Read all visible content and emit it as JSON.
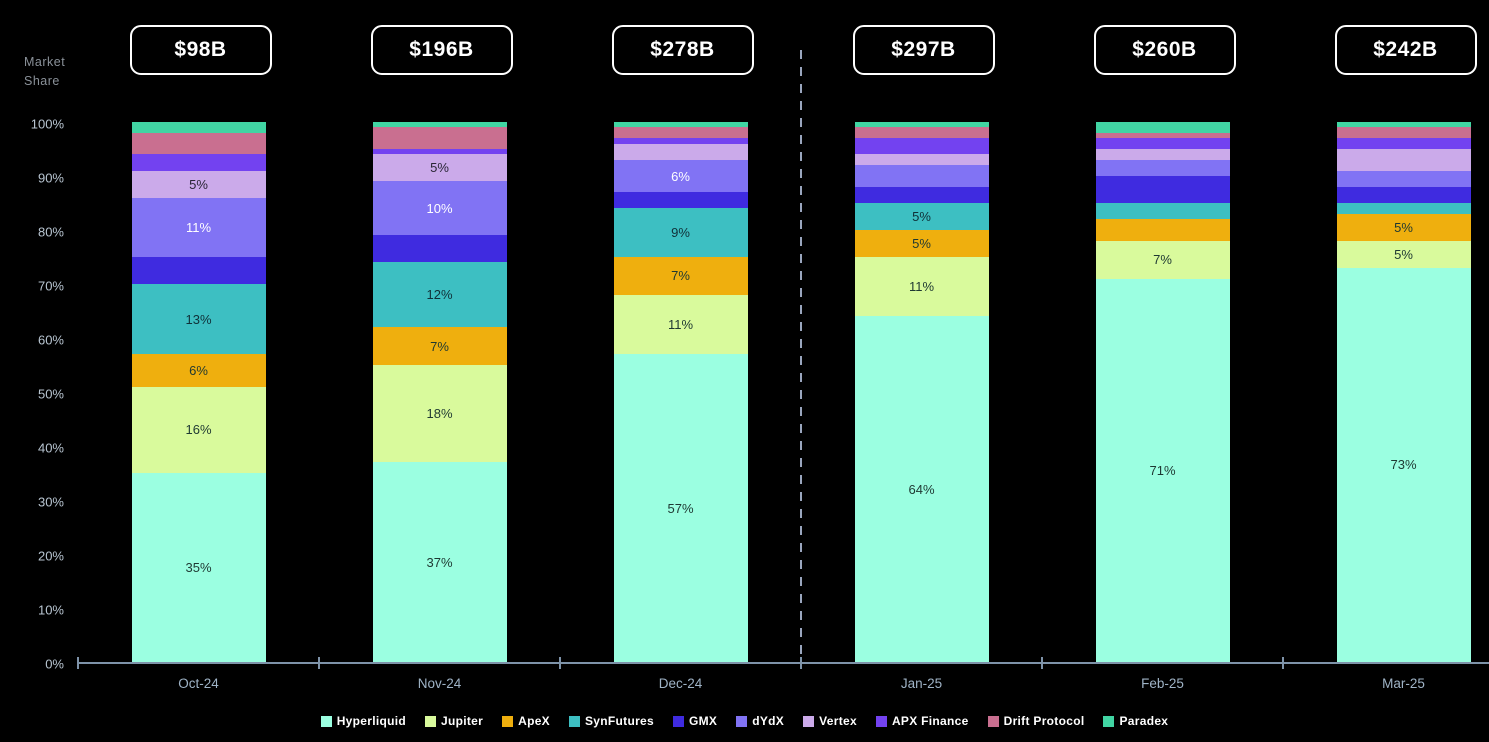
{
  "y_axis_title": {
    "line1": "Market",
    "line2": "Share"
  },
  "chart_data": {
    "type": "bar",
    "variant": "100-percent-stacked-column",
    "title": "",
    "ylabel": "Market Share",
    "categories": [
      "Oct-24",
      "Nov-24",
      "Dec-24",
      "Jan-25",
      "Feb-25",
      "Mar-25"
    ],
    "totals": [
      "$98B",
      "$196B",
      "$278B",
      "$297B",
      "$260B",
      "$242B"
    ],
    "y_ticks": [
      "0%",
      "10%",
      "20%",
      "30%",
      "40%",
      "50%",
      "60%",
      "70%",
      "80%",
      "90%",
      "100%"
    ],
    "ylim": [
      0,
      100
    ],
    "grid": false,
    "legend_position": "bottom",
    "divider_between": [
      "Dec-24",
      "Jan-25"
    ],
    "series": [
      {
        "name": "Hyperliquid",
        "color": "#9BFFE1",
        "label_color": "#1E3832",
        "values": [
          35,
          37,
          57,
          64,
          71,
          73
        ],
        "labels": [
          "35%",
          "37%",
          "57%",
          "64%",
          "71%",
          "73%"
        ]
      },
      {
        "name": "Jupiter",
        "color": "#D9FA9C",
        "label_color": "#1E3832",
        "values": [
          16,
          18,
          11,
          11,
          7,
          5
        ],
        "labels": [
          "16%",
          "18%",
          "11%",
          "11%",
          "7%",
          "5%"
        ]
      },
      {
        "name": "ApeX",
        "color": "#EFAF0E",
        "label_color": "#1E3832",
        "values": [
          6,
          7,
          7,
          5,
          4,
          5
        ],
        "labels": [
          "6%",
          "7%",
          "7%",
          "5%",
          "",
          "5%"
        ]
      },
      {
        "name": "SynFutures",
        "color": "#3DBFC2",
        "label_color": "#103038",
        "values": [
          13,
          12,
          9,
          5,
          3,
          2
        ],
        "labels": [
          "13%",
          "12%",
          "9%",
          "5%",
          "",
          ""
        ]
      },
      {
        "name": "GMX",
        "color": "#3F2BE0",
        "label_color": "#FFFFFF",
        "values": [
          5,
          5,
          3,
          3,
          5,
          3
        ],
        "labels": [
          "",
          "",
          "",
          "",
          "",
          ""
        ]
      },
      {
        "name": "dYdX",
        "color": "#8173F4",
        "label_color": "#FFFFFF",
        "values": [
          11,
          10,
          6,
          4,
          3,
          3
        ],
        "labels": [
          "11%",
          "10%",
          "6%",
          "",
          "",
          ""
        ]
      },
      {
        "name": "Vertex",
        "color": "#CBAAEA",
        "label_color": "#2A2636",
        "values": [
          5,
          5,
          3,
          2,
          2,
          4
        ],
        "labels": [
          "5%",
          "5%",
          "",
          "",
          "",
          ""
        ]
      },
      {
        "name": "APX Finance",
        "color": "#7342F0",
        "label_color": "#FFFFFF",
        "values": [
          3,
          1,
          1,
          3,
          2,
          2
        ],
        "labels": [
          "",
          "",
          "",
          "",
          "",
          ""
        ]
      },
      {
        "name": "Drift Protocol",
        "color": "#C96F90",
        "label_color": "#FFFFFF",
        "values": [
          4,
          4,
          2,
          2,
          1,
          2
        ],
        "labels": [
          "",
          "",
          "",
          "",
          "",
          ""
        ]
      },
      {
        "name": "Paradex",
        "color": "#41D5A3",
        "label_color": "#FFFFFF",
        "values": [
          2,
          1,
          1,
          1,
          2,
          1
        ],
        "labels": [
          "",
          "",
          "",
          "",
          "",
          ""
        ]
      }
    ]
  },
  "colors": {
    "background": "#000000",
    "axis": "#7E93A9",
    "y_tick_text": "#B8C5D1",
    "x_tick_text": "#9FB3C6",
    "axis_title_text": "#8A9199",
    "divider": "#9AA6BE",
    "total_box_border": "#FFFFFF",
    "total_box_text": "#FFFFFF"
  }
}
